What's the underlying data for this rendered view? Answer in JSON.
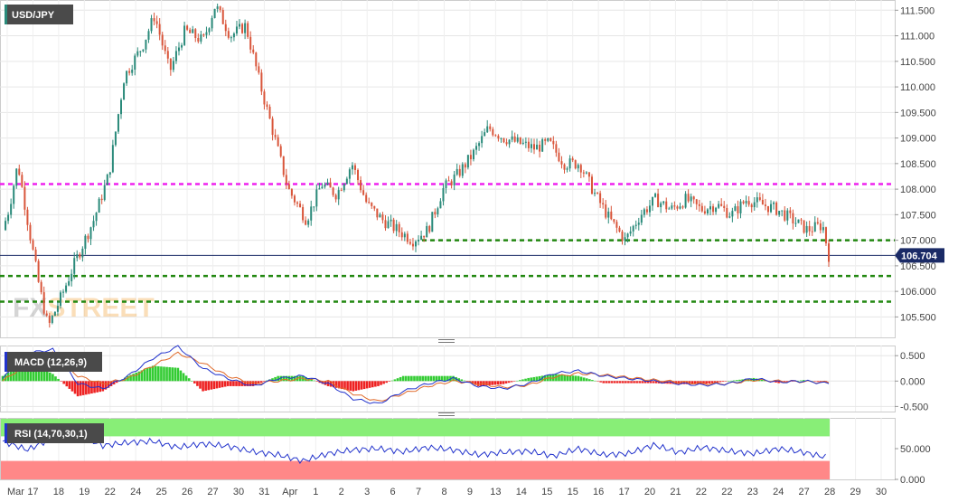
{
  "chart_data": [
    {
      "type": "candlestick",
      "title": "USD/JPY",
      "price_range": [
        105.1,
        111.7
      ],
      "y_ticks": [
        "111.500",
        "111.000",
        "110.500",
        "110.000",
        "109.500",
        "109.000",
        "108.500",
        "108.000",
        "107.500",
        "107.000",
        "106.500",
        "106.000",
        "105.500"
      ],
      "last_price": "106.704",
      "x_ticks": [
        "Mar",
        "17",
        "18",
        "19",
        "22",
        "24",
        "25",
        "26",
        "27",
        "30",
        "31",
        "Apr",
        "1",
        "2",
        "3",
        "6",
        "7",
        "8",
        "9",
        "13",
        "14",
        "15",
        "15",
        "16",
        "17",
        "20",
        "21",
        "22",
        "22",
        "23",
        "24",
        "27",
        "28",
        "29",
        "30"
      ],
      "price_path": [
        [
          0,
          107.2
        ],
        [
          0.2,
          107.6
        ],
        [
          0.5,
          108.5
        ],
        [
          0.9,
          107.1
        ],
        [
          1.2,
          106.1
        ],
        [
          1.5,
          105.3
        ],
        [
          2.0,
          106.0
        ],
        [
          2.4,
          106.6
        ],
        [
          3.0,
          107.4
        ],
        [
          3.5,
          108.3
        ],
        [
          4.0,
          110.2
        ],
        [
          4.6,
          110.8
        ],
        [
          5.0,
          111.4
        ],
        [
          5.5,
          110.3
        ],
        [
          6.0,
          111.1
        ],
        [
          6.6,
          110.9
        ],
        [
          7.0,
          111.6
        ],
        [
          7.5,
          111.0
        ],
        [
          8.0,
          111.2
        ],
        [
          8.5,
          110.0
        ],
        [
          9.0,
          108.9
        ],
        [
          9.4,
          108.0
        ],
        [
          10.0,
          107.4
        ],
        [
          10.5,
          108.1
        ],
        [
          11.0,
          107.9
        ],
        [
          11.5,
          108.5
        ],
        [
          12.0,
          107.7
        ],
        [
          12.5,
          107.4
        ],
        [
          13.0,
          107.2
        ],
        [
          13.5,
          107.0
        ],
        [
          14.0,
          107.2
        ],
        [
          14.5,
          108.0
        ],
        [
          15.0,
          108.3
        ],
        [
          15.5,
          108.7
        ],
        [
          16.0,
          109.2
        ],
        [
          16.5,
          109.0
        ],
        [
          17.0,
          108.9
        ],
        [
          17.5,
          108.8
        ],
        [
          18.0,
          108.9
        ],
        [
          18.5,
          108.5
        ],
        [
          19.0,
          108.5
        ],
        [
          19.5,
          107.9
        ],
        [
          20.0,
          107.4
        ],
        [
          20.5,
          107.0
        ],
        [
          21.0,
          107.5
        ],
        [
          21.5,
          107.8
        ],
        [
          22.0,
          107.6
        ],
        [
          22.5,
          107.8
        ],
        [
          23.0,
          107.6
        ],
        [
          23.5,
          107.7
        ],
        [
          24.0,
          107.5
        ],
        [
          24.5,
          107.8
        ],
        [
          25.0,
          107.7
        ],
        [
          25.5,
          107.6
        ],
        [
          26.0,
          107.4
        ],
        [
          26.5,
          107.2
        ],
        [
          27.0,
          107.3
        ],
        [
          27.2,
          106.7
        ]
      ],
      "horizontal_levels": [
        {
          "value": 108.1,
          "color": "#ee22ee",
          "start": 0
        },
        {
          "value": 107.0,
          "color": "#228811",
          "start": 18.2
        },
        {
          "value": 106.3,
          "color": "#228811",
          "start": 0
        },
        {
          "value": 105.8,
          "color": "#228811",
          "start": 0
        },
        {
          "value": 106.704,
          "color": "#1a2a66",
          "start": 0,
          "style": "solid"
        }
      ],
      "colors": {
        "up": "#2a8a7a",
        "down": "#d9553a",
        "price_badge": "#1a2a66",
        "watermark": "#888888",
        "watermark_accent": "#f2a33a"
      },
      "watermark": {
        "part1": "FX",
        "part2": "STREET"
      }
    },
    {
      "type": "line",
      "title": "MACD (12,26,9)",
      "y_ticks": [
        "0.500",
        "0.000",
        "-0.500"
      ],
      "y_range": [
        -0.6,
        0.7
      ],
      "x_points": 34,
      "macd_values": [
        0.05,
        0.55,
        0.62,
        -0.05,
        -0.15,
        0.1,
        0.45,
        0.68,
        0.25,
        0.05,
        -0.1,
        0.05,
        0.1,
        -0.05,
        -0.35,
        -0.45,
        -0.2,
        -0.05,
        0.05,
        -0.1,
        -0.15,
        -0.05,
        0.15,
        0.2,
        0.1,
        0.05,
        0.0,
        -0.05,
        -0.08,
        -0.05,
        0.05,
        -0.02,
        0.0,
        -0.05
      ],
      "signal_values": [
        0.0,
        0.35,
        0.55,
        0.1,
        -0.05,
        0.05,
        0.3,
        0.55,
        0.35,
        0.1,
        -0.05,
        0.0,
        0.05,
        0.0,
        -0.25,
        -0.4,
        -0.25,
        -0.1,
        0.0,
        -0.05,
        -0.12,
        -0.08,
        0.08,
        0.15,
        0.12,
        0.07,
        0.02,
        -0.02,
        -0.05,
        -0.05,
        0.02,
        0.0,
        -0.01,
        -0.03
      ],
      "colors": {
        "macd": "#2233cc",
        "signal": "#e06a2a",
        "hist_up": "#33cc33",
        "hist_down": "#ee2222"
      }
    },
    {
      "type": "line",
      "title": "RSI (14,70,30,1)",
      "y_ticks": [
        "50.000",
        "0.000"
      ],
      "y_range": [
        0,
        100
      ],
      "overbought": 70,
      "oversold": 30,
      "x_points": 34,
      "values": [
        62,
        48,
        68,
        72,
        55,
        60,
        62,
        52,
        58,
        54,
        45,
        40,
        30,
        42,
        48,
        50,
        45,
        52,
        48,
        40,
        44,
        46,
        38,
        50,
        40,
        42,
        56,
        44,
        52,
        46,
        42,
        50,
        44,
        35
      ],
      "colors": {
        "line": "#2233cc",
        "overbought_zone": "#88ee77",
        "oversold_zone": "#ff8888"
      }
    }
  ]
}
